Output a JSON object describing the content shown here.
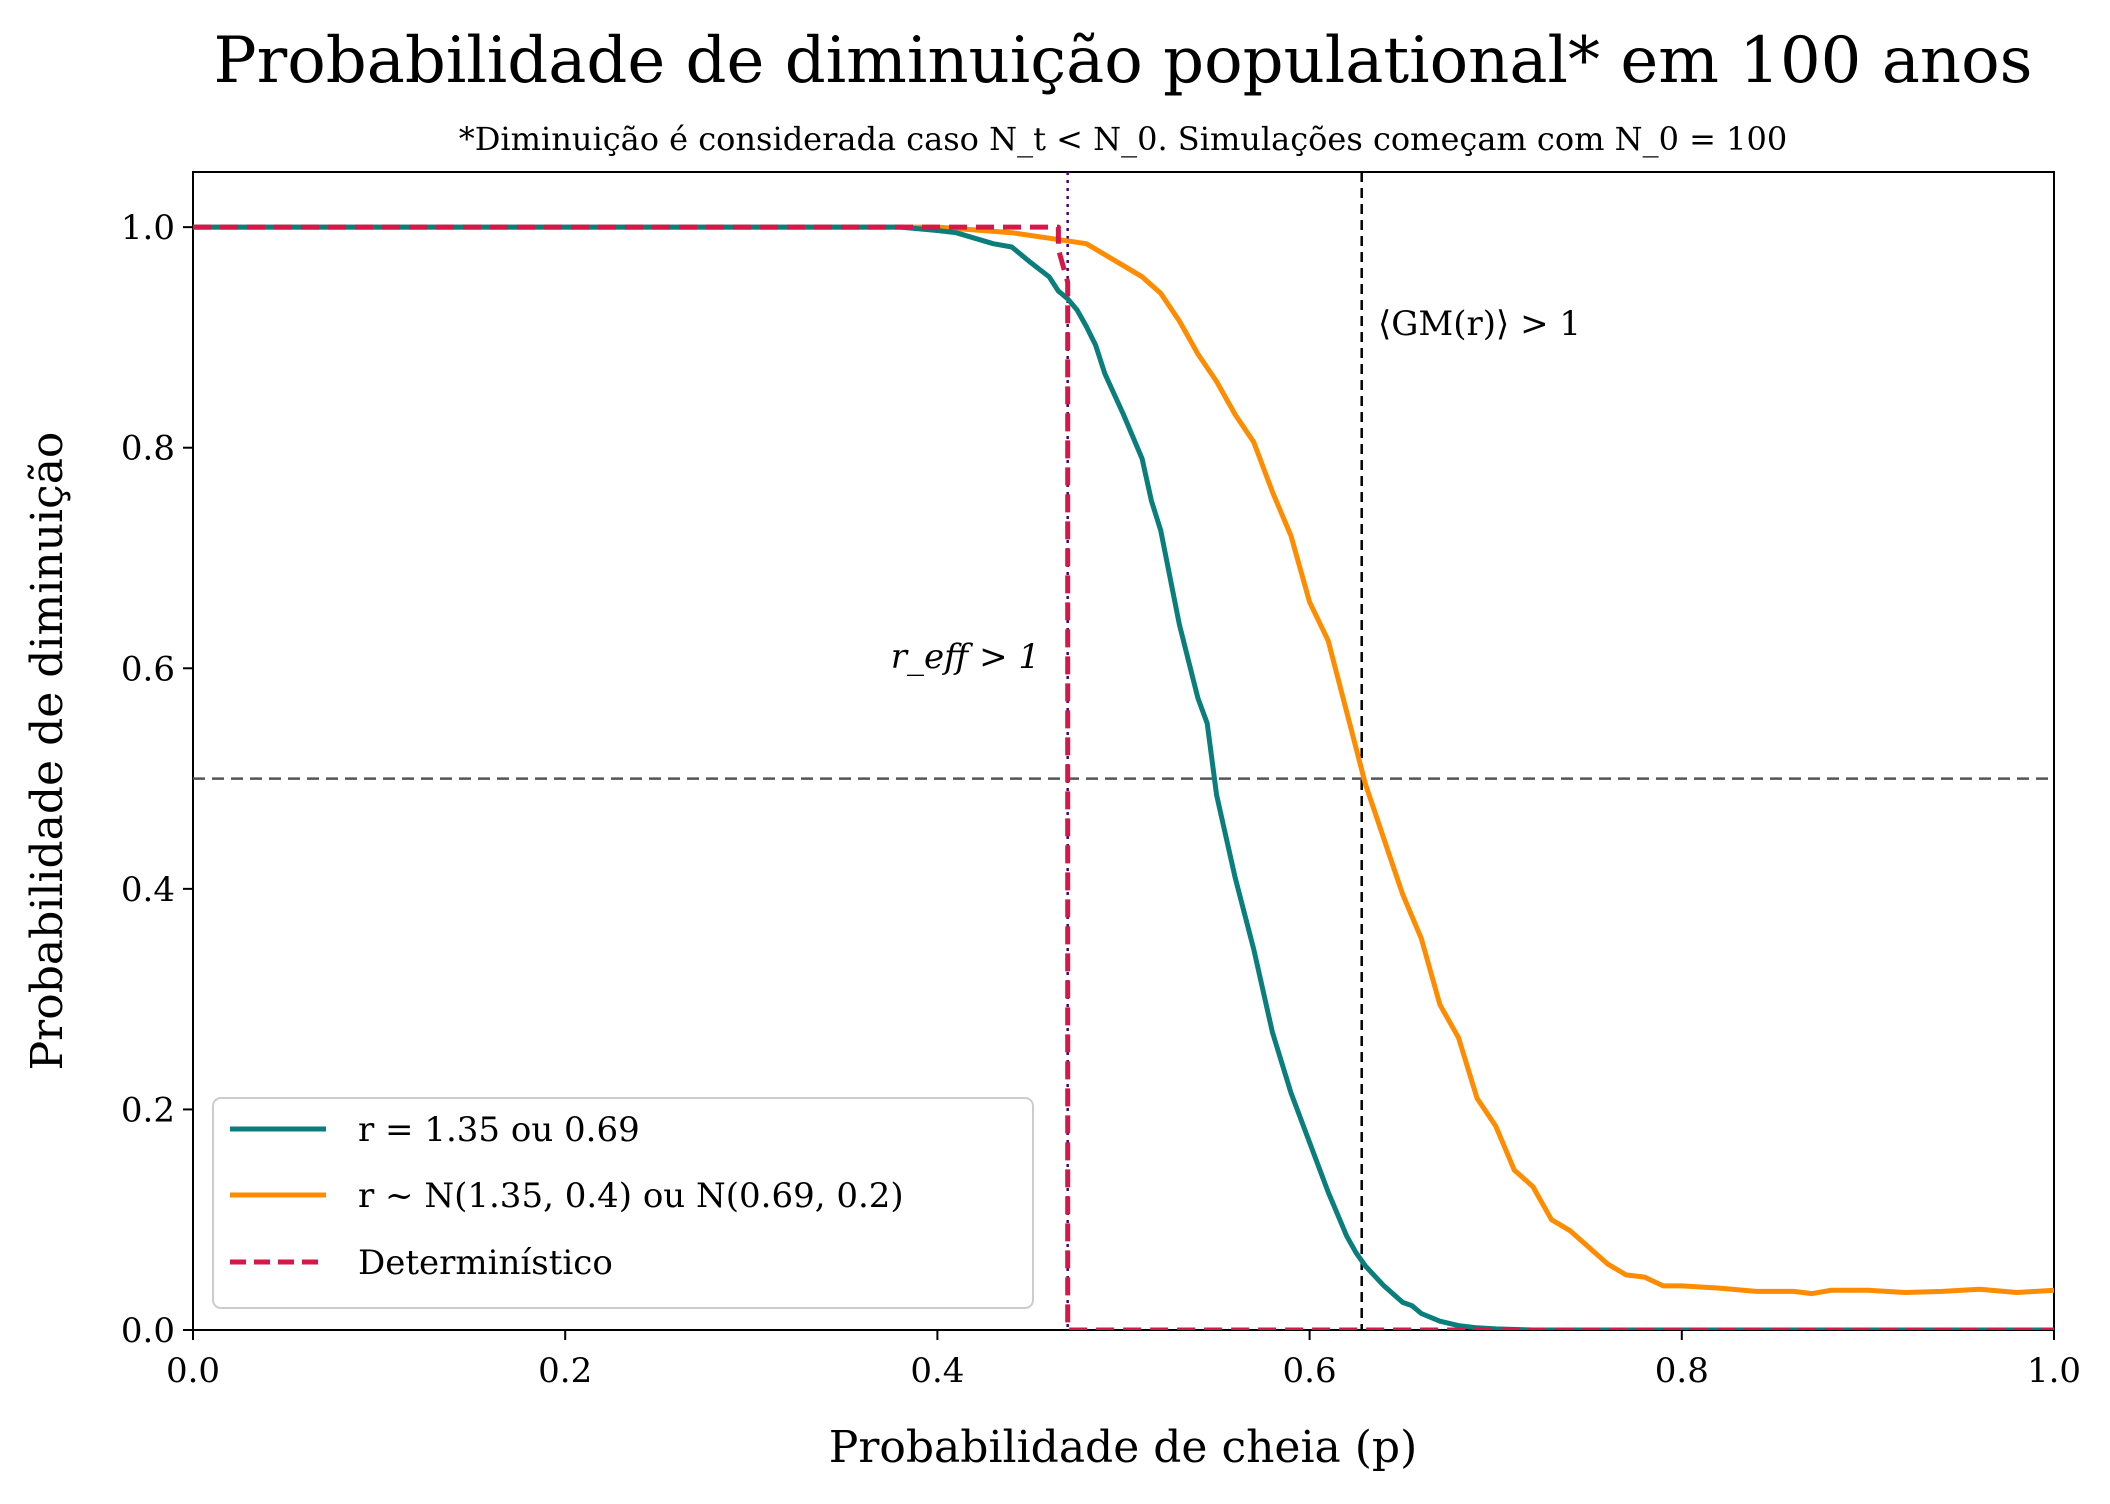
{
  "chart_data": {
    "type": "line",
    "title": "Probabilidade de diminuição populational* em 100 anos",
    "subtitle": "*Diminuição é considerada caso N_t < N_0. Simulações começam com N_0 = 100",
    "xlabel": "Probabilidade de cheia (p)",
    "ylabel": "Probabilidade de diminuição",
    "xlim": [
      0.0,
      1.0
    ],
    "ylim": [
      0.0,
      1.05
    ],
    "xticks": [
      "0.0",
      "0.2",
      "0.4",
      "0.6",
      "0.8",
      "1.0"
    ],
    "yticks": [
      "0.0",
      "0.2",
      "0.4",
      "0.6",
      "0.8",
      "1.0"
    ],
    "grid": false,
    "legend_position": "lower-left",
    "reference_lines": {
      "horizontal_y": 0.5,
      "vertical_reff": 0.47,
      "vertical_gm": 0.628
    },
    "annotations": {
      "reff": "r_eff > 1",
      "gm": "⟨GM(r)⟩ > 1"
    },
    "series": [
      {
        "name": "r = 1.35 ou 0.69",
        "color": "#0a7d7d",
        "style": "solid",
        "x": [
          0.0,
          0.38,
          0.4,
          0.41,
          0.42,
          0.43,
          0.44,
          0.45,
          0.46,
          0.465,
          0.47,
          0.475,
          0.48,
          0.485,
          0.49,
          0.5,
          0.51,
          0.515,
          0.52,
          0.53,
          0.54,
          0.545,
          0.55,
          0.56,
          0.57,
          0.58,
          0.59,
          0.6,
          0.61,
          0.62,
          0.625,
          0.63,
          0.64,
          0.65,
          0.655,
          0.66,
          0.67,
          0.68,
          0.69,
          0.7,
          0.72,
          1.0
        ],
        "y": [
          1.0,
          1.0,
          0.997,
          0.995,
          0.99,
          0.985,
          0.982,
          0.968,
          0.955,
          0.942,
          0.935,
          0.925,
          0.91,
          0.893,
          0.867,
          0.83,
          0.79,
          0.752,
          0.725,
          0.64,
          0.573,
          0.55,
          0.485,
          0.41,
          0.345,
          0.27,
          0.215,
          0.17,
          0.125,
          0.085,
          0.07,
          0.058,
          0.04,
          0.025,
          0.022,
          0.015,
          0.008,
          0.004,
          0.002,
          0.001,
          0.0,
          0.0
        ]
      },
      {
        "name": "r ~ N(1.35, 0.4) ou N(0.69, 0.2)",
        "color": "#ff8c00",
        "style": "solid",
        "x": [
          0.0,
          0.4,
          0.44,
          0.46,
          0.48,
          0.49,
          0.5,
          0.51,
          0.52,
          0.53,
          0.54,
          0.55,
          0.56,
          0.57,
          0.58,
          0.59,
          0.6,
          0.61,
          0.62,
          0.63,
          0.64,
          0.65,
          0.66,
          0.67,
          0.68,
          0.69,
          0.7,
          0.71,
          0.72,
          0.73,
          0.74,
          0.75,
          0.76,
          0.77,
          0.78,
          0.79,
          0.8,
          0.82,
          0.84,
          0.86,
          0.87,
          0.88,
          0.9,
          0.92,
          0.94,
          0.96,
          0.98,
          1.0
        ],
        "y": [
          1.0,
          1.0,
          0.995,
          0.99,
          0.985,
          0.975,
          0.965,
          0.955,
          0.94,
          0.915,
          0.885,
          0.86,
          0.83,
          0.805,
          0.76,
          0.72,
          0.66,
          0.625,
          0.56,
          0.495,
          0.445,
          0.395,
          0.355,
          0.295,
          0.265,
          0.21,
          0.185,
          0.145,
          0.13,
          0.1,
          0.09,
          0.075,
          0.06,
          0.05,
          0.048,
          0.04,
          0.04,
          0.038,
          0.035,
          0.035,
          0.033,
          0.036,
          0.036,
          0.034,
          0.035,
          0.037,
          0.034,
          0.036
        ]
      },
      {
        "name": "Determinístico",
        "color": "#d6174a",
        "style": "dashed",
        "x": [
          0.0,
          0.465,
          0.465,
          0.47,
          0.47,
          1.0
        ],
        "y": [
          1.0,
          1.0,
          0.98,
          0.95,
          0.0,
          0.0
        ]
      }
    ]
  }
}
